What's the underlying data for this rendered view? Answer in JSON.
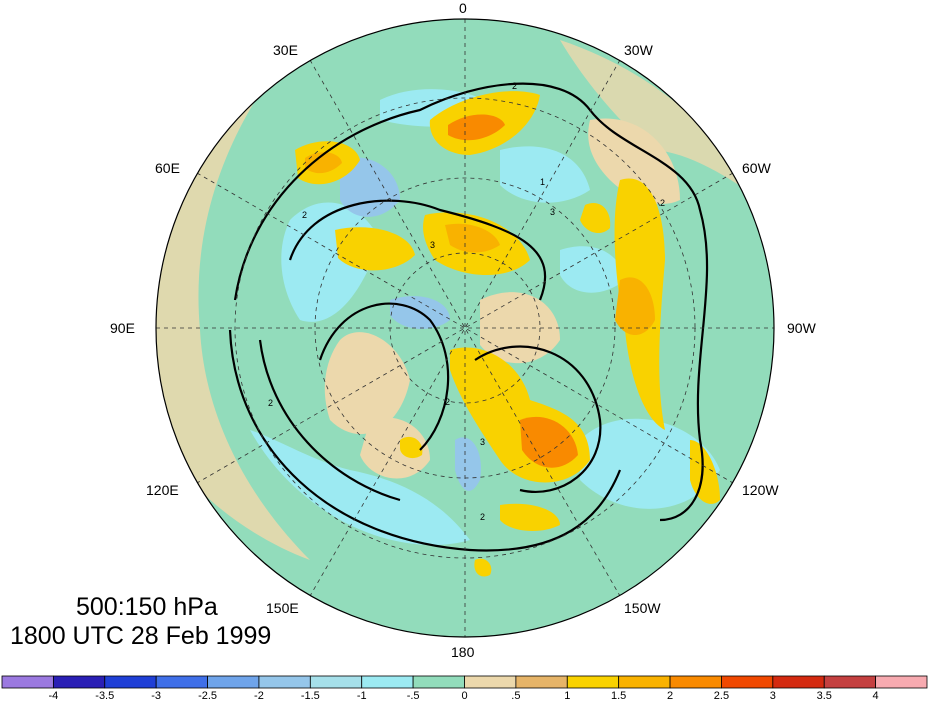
{
  "map": {
    "projection": "north-polar-stereographic",
    "center_longitude_at_bottom": "180",
    "longitude_labels": [
      "0",
      "30W",
      "60W",
      "90W",
      "120W",
      "150W",
      "180",
      "150E",
      "120E",
      "90E",
      "60E",
      "30E"
    ],
    "contour_labels": [
      "2",
      "2",
      "3",
      "3",
      "2",
      "1",
      "2",
      "2",
      "3",
      "2"
    ]
  },
  "title": {
    "line1": "500:150 hPa",
    "line2": "1800 UTC 28 Feb 1999"
  },
  "colorbar": {
    "labels": [
      "-4",
      "-3.5",
      "-3",
      "-2.5",
      "-2",
      "-1.5",
      "-1",
      "-.5",
      "0",
      ".5",
      "1",
      "1.5",
      "2",
      "2.5",
      "3",
      "3.5",
      "4"
    ],
    "colors": [
      "#9b79e0",
      "#2a1fb5",
      "#1f3fd6",
      "#3f6fe8",
      "#6fa4ea",
      "#95c6ea",
      "#a6e0ea",
      "#9ceaf2",
      "#92dcbb",
      "#ecd8ac",
      "#e6b468",
      "#f9d200",
      "#f9b200",
      "#f98a00",
      "#f04800",
      "#d42a10",
      "#c44040",
      "#f7aab0"
    ]
  }
}
